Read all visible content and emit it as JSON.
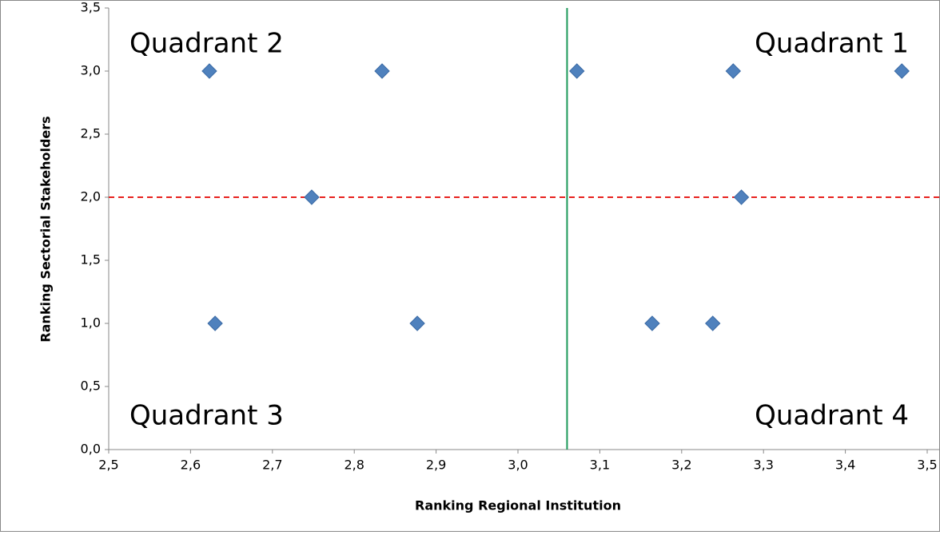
{
  "chart_data": {
    "type": "scatter",
    "xlabel": "Ranking Regional Institution",
    "ylabel": "Ranking Sectorial Stakeholders",
    "x": [
      2.623,
      2.834,
      3.072,
      3.263,
      3.469,
      2.748,
      3.273,
      2.63,
      2.877,
      3.164,
      3.238
    ],
    "values": [
      3,
      3,
      3,
      3,
      3,
      2,
      2,
      1,
      1,
      1,
      1
    ],
    "color": "#4f81bd",
    "xlim": [
      2.5,
      3.5
    ],
    "xticks": [
      {
        "value": 2.5,
        "label": "2,5"
      },
      {
        "value": 2.6,
        "label": "2,6"
      },
      {
        "value": 2.7,
        "label": "2,7"
      },
      {
        "value": 2.8,
        "label": "2,8"
      },
      {
        "value": 2.9,
        "label": "2,9"
      },
      {
        "value": 3.0,
        "label": "3,0"
      },
      {
        "value": 3.1,
        "label": "3,1"
      },
      {
        "value": 3.2,
        "label": "3,2"
      },
      {
        "value": 3.3,
        "label": "3,3"
      },
      {
        "value": 3.4,
        "label": "3,4"
      },
      {
        "value": 3.5,
        "label": "3,5"
      }
    ],
    "ylim": [
      0,
      3.5
    ],
    "yticks": [
      {
        "value": 0,
        "label": "0,0"
      },
      {
        "value": 0.5,
        "label": "0,5"
      },
      {
        "value": 1.0,
        "label": "1,0"
      },
      {
        "value": 1.5,
        "label": "1,5"
      },
      {
        "value": 2.0,
        "label": "2,0"
      },
      {
        "value": 2.5,
        "label": "2,5"
      },
      {
        "value": 3.0,
        "label": "3,0"
      },
      {
        "value": 3.5,
        "label": "3,5"
      }
    ],
    "vline": {
      "value": 3.06,
      "color": "#1e9a5a"
    },
    "hline": {
      "value": 2.0,
      "color": "#e8221e"
    },
    "annotations": [
      "Quadrant 1",
      "Quadrant 2",
      "Quadrant 3",
      "Quadrant 4"
    ],
    "grid": false
  }
}
